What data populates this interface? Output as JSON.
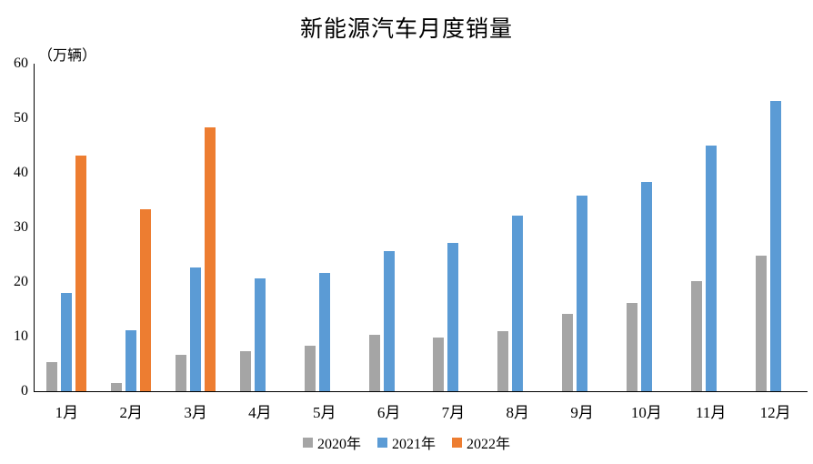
{
  "chart_data": {
    "type": "bar",
    "title": "新能源汽车月度销量",
    "unit_label": "（万辆）",
    "categories": [
      "1月",
      "2月",
      "3月",
      "4月",
      "5月",
      "6月",
      "7月",
      "8月",
      "9月",
      "10月",
      "11月",
      "12月"
    ],
    "series": [
      {
        "name": "2020年",
        "color": "#A5A5A5",
        "values": [
          5.3,
          1.5,
          6.6,
          7.4,
          8.3,
          10.4,
          9.8,
          11.0,
          14.2,
          16.1,
          20.1,
          24.8
        ]
      },
      {
        "name": "2021年",
        "color": "#5B9BD5",
        "values": [
          18.0,
          11.1,
          22.6,
          20.6,
          21.7,
          25.6,
          27.1,
          32.1,
          35.8,
          38.3,
          45.0,
          53.2
        ]
      },
      {
        "name": "2022年",
        "color": "#ED7D31",
        "values": [
          43.1,
          33.4,
          48.4,
          null,
          null,
          null,
          null,
          null,
          null,
          null,
          null,
          null
        ]
      }
    ],
    "xlabel": "",
    "ylabel": "",
    "ylim": [
      0,
      60
    ],
    "yticks": [
      0,
      10,
      20,
      30,
      40,
      50,
      60
    ],
    "grid": false,
    "legend_position": "bottom",
    "background_color": "#ffffff",
    "text_color": "#000000"
  }
}
